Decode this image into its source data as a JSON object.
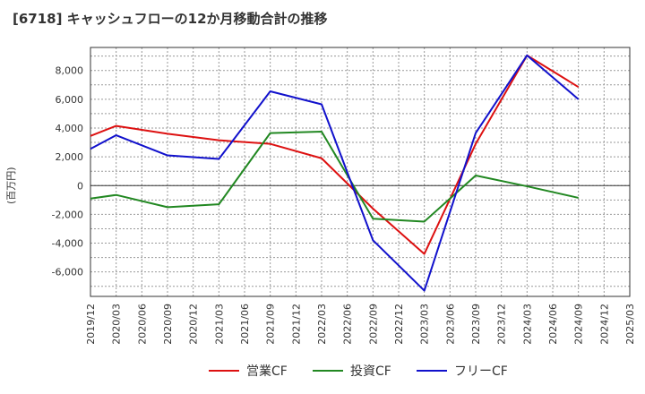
{
  "chart_data": {
    "type": "line",
    "title": "[6718]  キャッシュフローの12か月移動合計の推移",
    "ylabel": "(百万円)",
    "xlabel": "",
    "ylim": [
      -7700,
      9600
    ],
    "yticks": [
      -6000,
      -4000,
      -2000,
      0,
      2000,
      4000,
      6000,
      8000
    ],
    "ytick_labels": [
      "-6,000",
      "-4,000",
      "-2,000",
      "0",
      "2,000",
      "4,000",
      "6,000",
      "8,000"
    ],
    "categories": [
      "2019/12",
      "2020/03",
      "2020/06",
      "2020/09",
      "2020/12",
      "2021/03",
      "2021/06",
      "2021/09",
      "2021/12",
      "2022/03",
      "2022/06",
      "2022/09",
      "2022/12",
      "2023/03",
      "2023/06",
      "2023/09",
      "2023/12",
      "2024/03",
      "2024/06",
      "2024/09",
      "2024/12",
      "2025/03"
    ],
    "grid": true,
    "legend_position": "bottom",
    "series": [
      {
        "name": "営業CF",
        "color": "#dd1111",
        "points": [
          {
            "x": "2019/12",
            "y": 3450
          },
          {
            "x": "2020/03",
            "y": 4150
          },
          {
            "x": "2020/09",
            "y": 3600
          },
          {
            "x": "2021/03",
            "y": 3150
          },
          {
            "x": "2021/09",
            "y": 2900
          },
          {
            "x": "2022/03",
            "y": 1900
          },
          {
            "x": "2022/09",
            "y": -1600
          },
          {
            "x": "2023/03",
            "y": -4750
          },
          {
            "x": "2023/09",
            "y": 2900
          },
          {
            "x": "2024/03",
            "y": 9050
          },
          {
            "x": "2024/09",
            "y": 6850
          }
        ]
      },
      {
        "name": "投資CF",
        "color": "#228822",
        "points": [
          {
            "x": "2019/12",
            "y": -900
          },
          {
            "x": "2020/03",
            "y": -650
          },
          {
            "x": "2020/09",
            "y": -1500
          },
          {
            "x": "2021/03",
            "y": -1300
          },
          {
            "x": "2021/09",
            "y": 3650
          },
          {
            "x": "2022/03",
            "y": 3750
          },
          {
            "x": "2022/09",
            "y": -2300
          },
          {
            "x": "2023/03",
            "y": -2500
          },
          {
            "x": "2023/09",
            "y": 700
          },
          {
            "x": "2024/03",
            "y": -50
          },
          {
            "x": "2024/09",
            "y": -850
          }
        ]
      },
      {
        "name": "フリーCF",
        "color": "#1111cc",
        "points": [
          {
            "x": "2019/12",
            "y": 2550
          },
          {
            "x": "2020/03",
            "y": 3500
          },
          {
            "x": "2020/09",
            "y": 2100
          },
          {
            "x": "2021/03",
            "y": 1850
          },
          {
            "x": "2021/09",
            "y": 6550
          },
          {
            "x": "2022/03",
            "y": 5650
          },
          {
            "x": "2022/09",
            "y": -3800
          },
          {
            "x": "2023/03",
            "y": -7300
          },
          {
            "x": "2023/09",
            "y": 3650
          },
          {
            "x": "2024/03",
            "y": 9050
          },
          {
            "x": "2024/09",
            "y": 6000
          }
        ]
      }
    ]
  }
}
